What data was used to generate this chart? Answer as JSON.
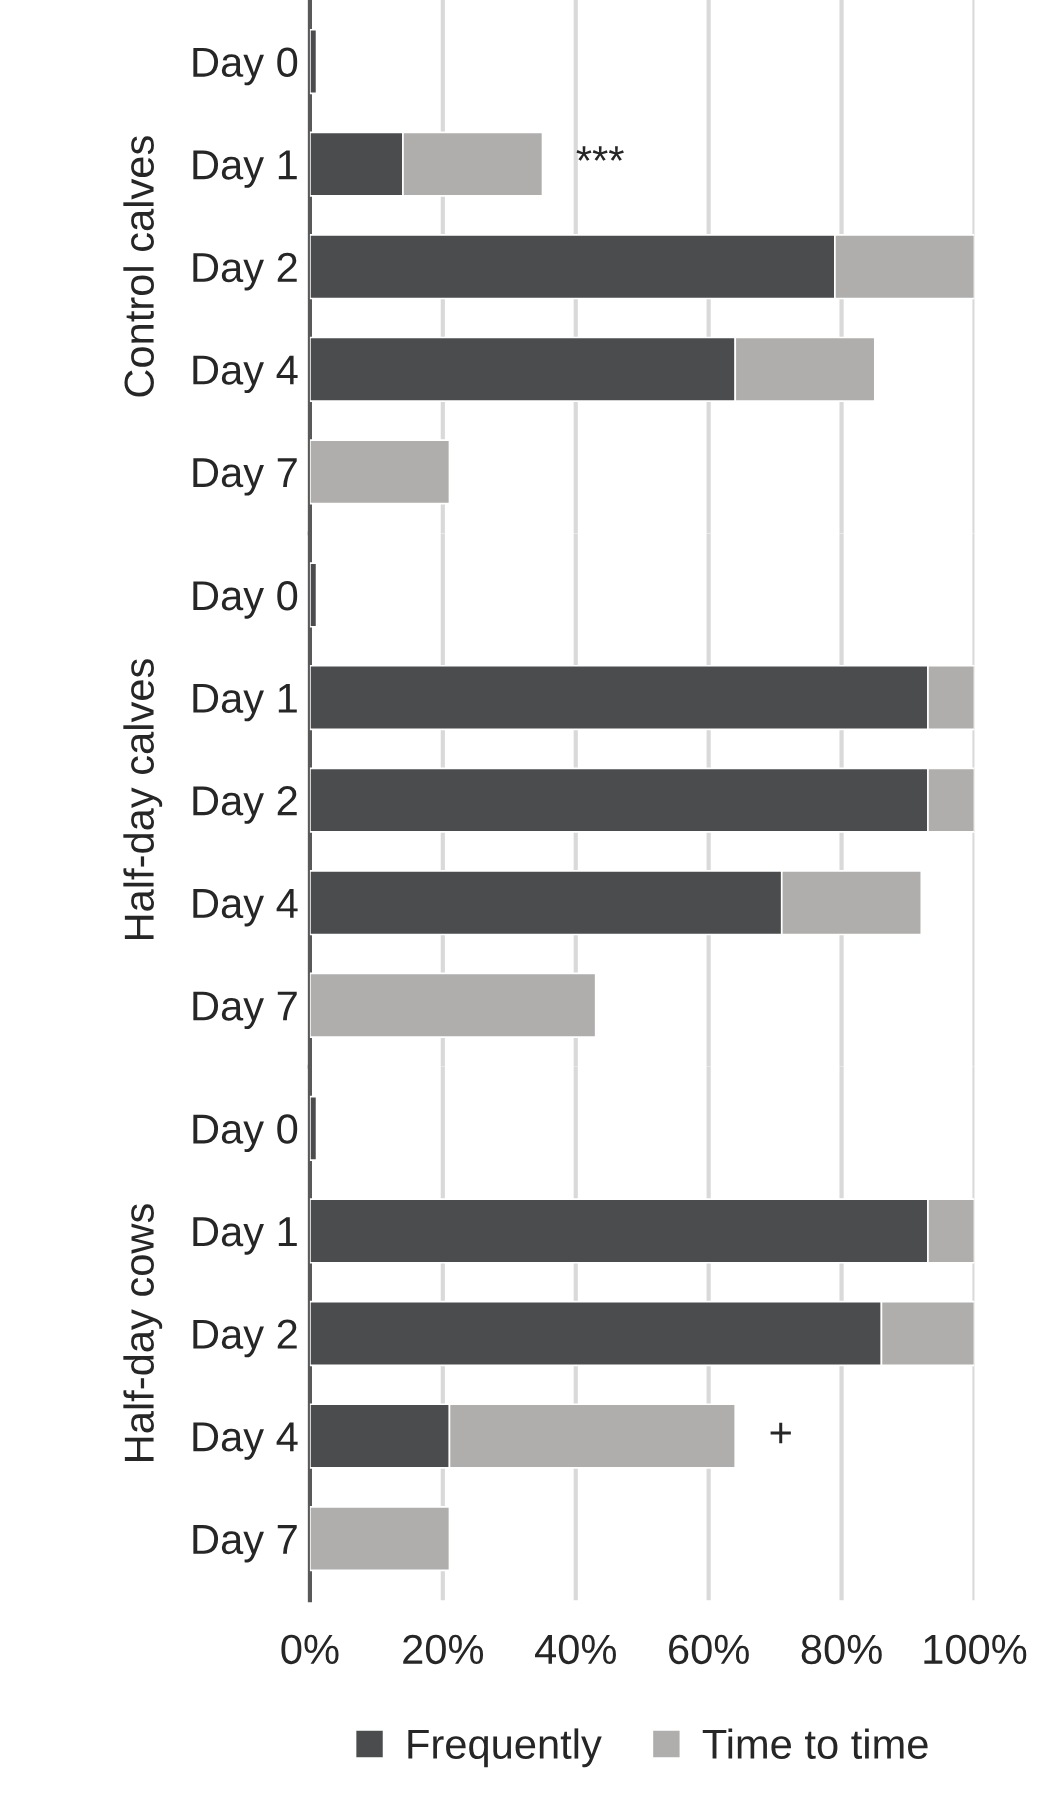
{
  "chart_data": [
    {
      "type": "bar",
      "orientation": "horizontal",
      "stacked": true,
      "ylabel": "Control calves",
      "categories": [
        "Day 0",
        "Day 1",
        "Day 2",
        "Day 4",
        "Day 7"
      ],
      "series": [
        {
          "color": "#4b4c4e",
          "values": [
            1,
            14,
            79,
            64,
            0
          ]
        },
        {
          "color": "#afaeac",
          "values": [
            0,
            21,
            21,
            21,
            21
          ]
        }
      ],
      "xlim": [
        0,
        100
      ],
      "xticks": [
        {
          "value": 0,
          "label": null
        },
        {
          "value": 20,
          "label": null
        },
        {
          "value": 40,
          "label": null
        },
        {
          "value": 60,
          "label": null
        },
        {
          "value": 80,
          "label": null
        },
        {
          "value": 100,
          "label": null
        }
      ],
      "grid": "x",
      "tick_labels": "y",
      "legend": false,
      "annotations": [
        {
          "text": "***",
          "x": 35,
          "y": "Day 1"
        }
      ]
    },
    {
      "type": "bar",
      "orientation": "horizontal",
      "stacked": true,
      "ylabel": "Half-day calves",
      "categories": [
        "Day 0",
        "Day 1",
        "Day 2",
        "Day 4",
        "Day 7"
      ],
      "series": [
        {
          "color": "#4b4c4e",
          "values": [
            1,
            93,
            93,
            71,
            0
          ]
        },
        {
          "color": "#afaeac",
          "values": [
            0,
            7,
            7,
            21,
            43
          ]
        }
      ],
      "xlim": [
        0,
        100
      ],
      "xticks": [
        {
          "value": 0,
          "label": null
        },
        {
          "value": 20,
          "label": null
        },
        {
          "value": 40,
          "label": null
        },
        {
          "value": 60,
          "label": null
        },
        {
          "value": 80,
          "label": null
        },
        {
          "value": 100,
          "label": null
        }
      ],
      "grid": "x",
      "tick_labels": "y",
      "legend": false
    },
    {
      "type": "bar",
      "orientation": "horizontal",
      "stacked": true,
      "ylabel": "Half-day cows",
      "categories": [
        "Day 0",
        "Day 1",
        "Day 2",
        "Day 4",
        "Day 7"
      ],
      "series": [
        {
          "name": "Frequently",
          "color": "#4b4c4e",
          "values": [
            1,
            93,
            86,
            21,
            0
          ]
        },
        {
          "name": "Time to time",
          "color": "#afaeac",
          "values": [
            0,
            7,
            14,
            43,
            21
          ]
        }
      ],
      "xlim": [
        0,
        100
      ],
      "xticks": [
        {
          "value": 0,
          "label": "0%"
        },
        {
          "value": 20,
          "label": "20%"
        },
        {
          "value": 40,
          "label": "40%"
        },
        {
          "value": 60,
          "label": "60%"
        },
        {
          "value": 80,
          "label": "80%"
        },
        {
          "value": 100,
          "label": "100%"
        }
      ],
      "grid": "x",
      "legend": "bottom",
      "annotations": [
        {
          "text": "+",
          "x": 64,
          "y": "Day 4"
        }
      ]
    }
  ]
}
